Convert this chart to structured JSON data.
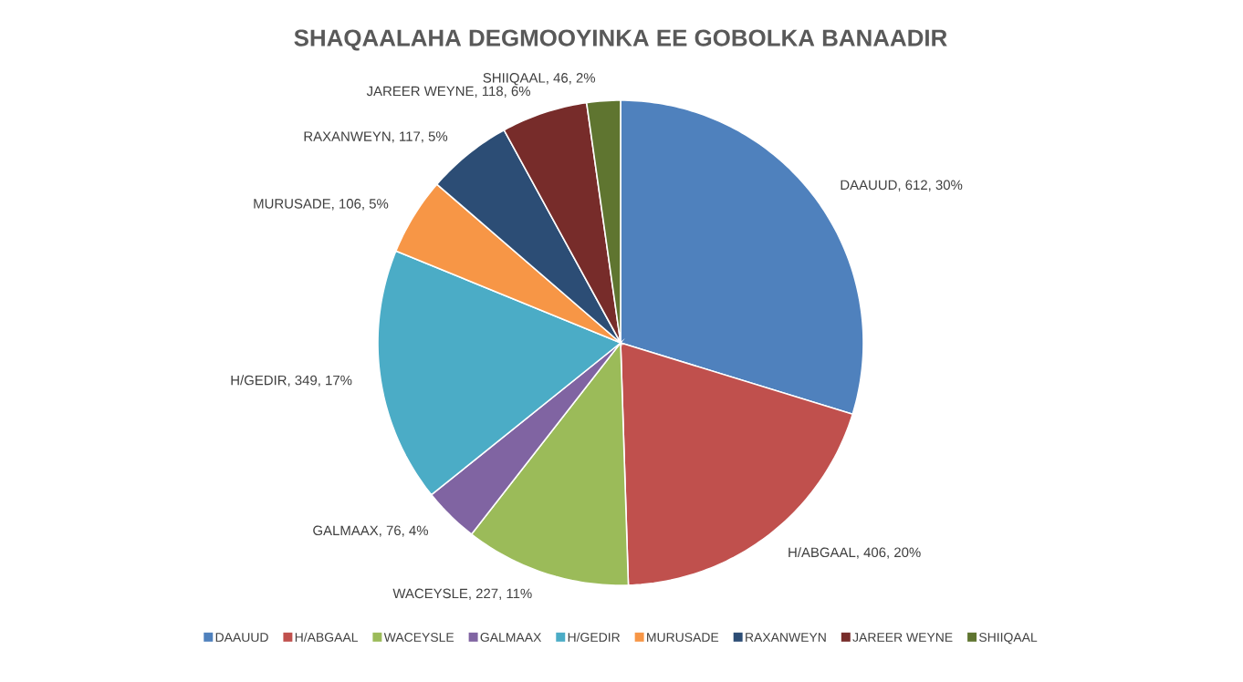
{
  "chart_data": {
    "type": "pie",
    "title": "SHAQAALAHA DEGMOOYINKA EE GOBOLKA BANAADIR",
    "categories": [
      "DAAUUD",
      "H/ABGAAL",
      "WACEYSLE",
      "GALMAAX",
      "H/GEDIR",
      "MURUSADE",
      "RAXANWEYN",
      "JAREER WEYNE",
      "SHIIQAAL"
    ],
    "values": [
      612,
      406,
      227,
      76,
      349,
      106,
      117,
      118,
      46
    ],
    "value_labels": [
      "DAAUUD, 612, 30%",
      "H/ABGAAL, 406, 20%",
      "WACEYSLE, 227, 11%",
      "GALMAAX, 76, 4%",
      "H/GEDIR, 349, 17%",
      "MURUSADE, 106, 5%",
      "RAXANWEYN, 117, 5%",
      "JAREER WEYNE, 118, 6%",
      "SHIIQAAL, 46, 2%"
    ],
    "colors": [
      "#4f81bd",
      "#c0504d",
      "#9bbb59",
      "#8064a2",
      "#4bacc6",
      "#f79646",
      "#2c4d75",
      "#772c2a",
      "#5f7530"
    ],
    "legend": "bottom"
  }
}
